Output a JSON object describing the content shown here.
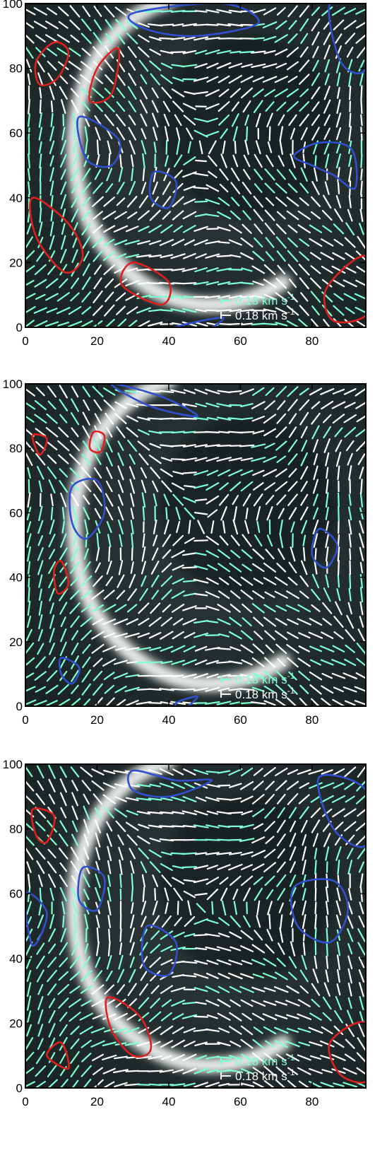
{
  "chart_data": [
    {
      "type": "scatter",
      "title": "",
      "xlabel": "",
      "ylabel": "",
      "xlim": [
        0,
        95
      ],
      "ylim": [
        0,
        100
      ],
      "xticks": [
        "0",
        "20",
        "40",
        "60",
        "80"
      ],
      "yticks": [
        "0",
        "20",
        "40",
        "60",
        "80",
        "100"
      ],
      "legend": [
        {
          "label": "0.18 km s",
          "exponent": "-1",
          "color": "#7fffd4"
        },
        {
          "label": "0.18 km s",
          "exponent": "-1",
          "color": "#ffffff"
        }
      ],
      "contours": [
        {
          "color": "#e02020",
          "loops": [
            [
              [
                3,
                82
              ],
              [
                8,
                88
              ],
              [
                12,
                85
              ],
              [
                9,
                77
              ],
              [
                4,
                75
              ]
            ],
            [
              [
                20,
                80
              ],
              [
                26,
                86
              ],
              [
                24,
                72
              ],
              [
                18,
                70
              ]
            ],
            [
              [
                2,
                40
              ],
              [
                12,
                32
              ],
              [
                16,
                22
              ],
              [
                11,
                17
              ],
              [
                3,
                28
              ]
            ],
            [
              [
                30,
                20
              ],
              [
                40,
                14
              ],
              [
                38,
                7
              ],
              [
                27,
                13
              ]
            ],
            [
              [
                84,
                12
              ],
              [
                95,
                22
              ],
              [
                96,
                5
              ],
              [
                86,
                2
              ]
            ]
          ]
        },
        {
          "color": "#3050d0",
          "loops": [
            [
              [
                30,
                97
              ],
              [
                55,
                100
              ],
              [
                65,
                94
              ],
              [
                48,
                90
              ],
              [
                34,
                92
              ]
            ],
            [
              [
                15,
                65
              ],
              [
                26,
                58
              ],
              [
                24,
                50
              ],
              [
                17,
                52
              ]
            ],
            [
              [
                36,
                48
              ],
              [
                42,
                45
              ],
              [
                40,
                37
              ],
              [
                35,
                40
              ]
            ],
            [
              [
                75,
                53
              ],
              [
                82,
                57
              ],
              [
                91,
                55
              ],
              [
                92,
                43
              ],
              [
                86,
                47
              ],
              [
                80,
                50
              ]
            ],
            [
              [
                85,
                100
              ],
              [
                95,
                100
              ],
              [
                95,
                80
              ],
              [
                88,
                82
              ]
            ],
            [
              [
                42,
                0
              ],
              [
                55,
                3
              ],
              [
                50,
                -1
              ]
            ]
          ]
        }
      ]
    },
    {
      "type": "scatter",
      "title": "",
      "xlabel": "",
      "ylabel": "",
      "xlim": [
        0,
        95
      ],
      "ylim": [
        0,
        100
      ],
      "xticks": [
        "0",
        "20",
        "40",
        "60",
        "80"
      ],
      "yticks": [
        "0",
        "20",
        "40",
        "60",
        "80",
        "100"
      ],
      "legend": [
        {
          "label": "0.18 km s",
          "exponent": "-1",
          "color": "#7fffd4"
        },
        {
          "label": "0.18 km s",
          "exponent": "-1",
          "color": "#ffffff"
        }
      ],
      "contours": [
        {
          "color": "#e02020",
          "loops": [
            [
              [
                10,
                45
              ],
              [
                12,
                38
              ],
              [
                9,
                35
              ],
              [
                8,
                42
              ]
            ],
            [
              [
                19,
                85
              ],
              [
                22,
                84
              ],
              [
                21,
                79
              ],
              [
                18,
                80
              ]
            ],
            [
              [
                2,
                84
              ],
              [
                6,
                83
              ],
              [
                4,
                78
              ]
            ]
          ]
        },
        {
          "color": "#3050d0",
          "loops": [
            [
              [
                13,
                68
              ],
              [
                20,
                70
              ],
              [
                22,
                60
              ],
              [
                17,
                52
              ],
              [
                13,
                57
              ]
            ],
            [
              [
                82,
                55
              ],
              [
                87,
                50
              ],
              [
                84,
                43
              ],
              [
                80,
                47
              ]
            ],
            [
              [
                24,
                100
              ],
              [
                38,
                96
              ],
              [
                48,
                90
              ],
              [
                35,
                93
              ]
            ],
            [
              [
                10,
                15
              ],
              [
                15,
                12
              ],
              [
                13,
                7
              ],
              [
                10,
                10
              ]
            ],
            [
              [
                42,
                1
              ],
              [
                48,
                3
              ],
              [
                44,
                -1
              ]
            ]
          ]
        }
      ]
    },
    {
      "type": "scatter",
      "title": "",
      "xlabel": "",
      "ylabel": "",
      "xlim": [
        0,
        95
      ],
      "ylim": [
        0,
        100
      ],
      "xticks": [
        "0",
        "20",
        "40",
        "60",
        "80"
      ],
      "yticks": [
        "0",
        "20",
        "40",
        "60",
        "80",
        "100"
      ],
      "legend": [
        {
          "label": "0.18 km s",
          "exponent": "-1",
          "color": "#7fffd4"
        },
        {
          "label": "0.18 km s",
          "exponent": "-1",
          "color": "#ffffff"
        }
      ],
      "contours": [
        {
          "color": "#e02020",
          "loops": [
            [
              [
                2,
                86
              ],
              [
                8,
                84
              ],
              [
                6,
                76
              ],
              [
                3,
                78
              ]
            ],
            [
              [
                23,
                28
              ],
              [
                32,
                22
              ],
              [
                35,
                12
              ],
              [
                30,
                10
              ],
              [
                24,
                18
              ]
            ],
            [
              [
                85,
                14
              ],
              [
                95,
                20
              ],
              [
                96,
                3
              ],
              [
                88,
                4
              ]
            ],
            [
              [
                6,
                10
              ],
              [
                10,
                14
              ],
              [
                12,
                6
              ]
            ]
          ]
        },
        {
          "color": "#3050d0",
          "loops": [
            [
              [
                30,
                98
              ],
              [
                42,
                95
              ],
              [
                52,
                95
              ],
              [
                40,
                90
              ],
              [
                30,
                92
              ]
            ],
            [
              [
                16,
                68
              ],
              [
                22,
                65
              ],
              [
                20,
                55
              ],
              [
                15,
                58
              ]
            ],
            [
              [
                34,
                50
              ],
              [
                42,
                45
              ],
              [
                40,
                35
              ],
              [
                33,
                38
              ]
            ],
            [
              [
                75,
                62
              ],
              [
                86,
                64
              ],
              [
                90,
                55
              ],
              [
                85,
                45
              ],
              [
                76,
                50
              ]
            ],
            [
              [
                82,
                96
              ],
              [
                95,
                92
              ],
              [
                95,
                75
              ],
              [
                86,
                80
              ]
            ],
            [
              [
                0,
                60
              ],
              [
                6,
                54
              ],
              [
                2,
                44
              ]
            ]
          ]
        }
      ]
    }
  ]
}
